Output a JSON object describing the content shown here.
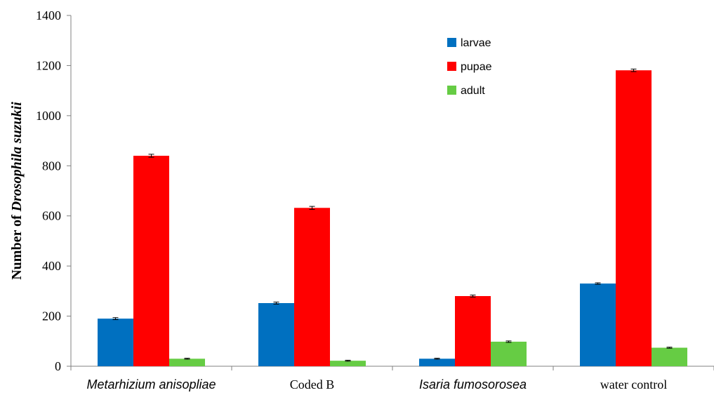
{
  "chart_data": {
    "type": "bar",
    "title": "",
    "xlabel": "",
    "ylabel_prefix": "Number of ",
    "ylabel_italic": "Drosophila suzukii",
    "ylim": [
      0,
      1400
    ],
    "yticks": [
      0,
      200,
      400,
      600,
      800,
      1000,
      1200,
      1400
    ],
    "ytick_labels": [
      "0",
      "200",
      "400",
      "600",
      "800",
      "1000",
      "1200",
      "1400"
    ],
    "categories": [
      "Metarhizium anisopliae",
      "Coded B",
      "Isaria fumosorosea",
      "water control"
    ],
    "category_italic": [
      true,
      false,
      true,
      false
    ],
    "series": [
      {
        "name": "larvae",
        "color": "#0070C0",
        "values": [
          190,
          252,
          30,
          330
        ],
        "errors": [
          4,
          4,
          2,
          3
        ]
      },
      {
        "name": "pupae",
        "color": "#FF0000",
        "values": [
          840,
          632,
          280,
          1181
        ],
        "errors": [
          6,
          6,
          4,
          5
        ]
      },
      {
        "name": "adult",
        "color": "#66CC44",
        "values": [
          30,
          22,
          98,
          74
        ],
        "errors": [
          2,
          2,
          3,
          2
        ]
      }
    ],
    "legend_position": "top-right",
    "grid": false,
    "error_bars": true
  }
}
